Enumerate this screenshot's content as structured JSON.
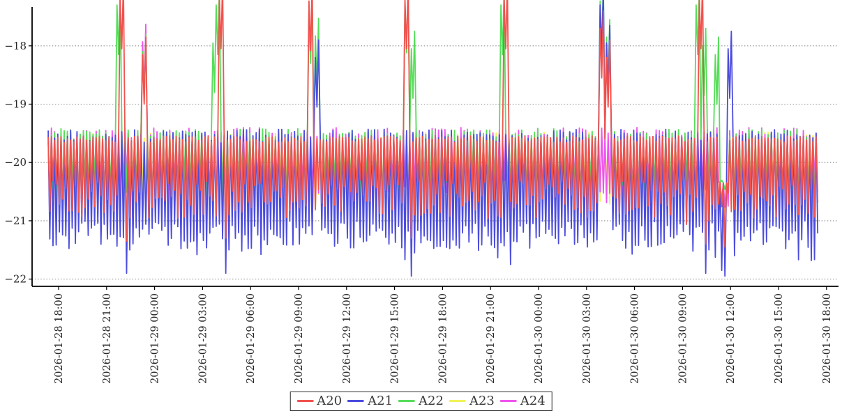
{
  "chart_data": {
    "type": "line",
    "title": "",
    "xlabel": "",
    "ylabel": "",
    "grid": "horizontal-dotted",
    "legend_position": "bottom-center",
    "y_axis": {
      "ticks": [
        -18,
        -19,
        -20,
        -21,
        -22
      ],
      "tick_labels": [
        "−18",
        "−19",
        "−20",
        "−21",
        "−22"
      ],
      "range": [
        -22.35,
        -17.33
      ]
    },
    "x_axis": {
      "tick_interval_hours": 3,
      "tick_labels": [
        "2026-01-28 18:00",
        "2026-01-28 21:00",
        "2026-01-29 00:00",
        "2026-01-29 03:00",
        "2026-01-29 06:00",
        "2026-01-29 09:00",
        "2026-01-29 12:00",
        "2026-01-29 15:00",
        "2026-01-29 18:00",
        "2026-01-29 21:00",
        "2026-01-30 00:00",
        "2026-01-30 03:00",
        "2026-01-30 06:00",
        "2026-01-30 09:00",
        "2026-01-30 12:00",
        "2026-01-30 15:00",
        "2026-01-30 18:00"
      ]
    },
    "sampling_hours": 0.1,
    "data_span_hours": [
      -0.65,
      47.5
    ],
    "series": [
      {
        "name": "A20",
        "color": "#f0534f",
        "top_mean": -19.6,
        "top_jit": 0.06,
        "bot_min": -20.3,
        "bot_max": -20.95,
        "deep_p": 0.06,
        "deep_extra": 0.18
      },
      {
        "name": "A21",
        "color": "#4c4cdd",
        "top_mean": -19.55,
        "top_jit": 0.12,
        "bot_min": -21.0,
        "bot_max": -21.48,
        "deep_p": 0.1,
        "deep_extra": 0.22
      },
      {
        "name": "A22",
        "color": "#57dd5a",
        "top_mean": -19.52,
        "top_jit": 0.1,
        "bot_min": -20.3,
        "bot_max": -20.85,
        "deep_p": 0.04,
        "deep_extra": 0.15
      },
      {
        "name": "A23",
        "color": "#f2f257",
        "top_mean": -19.58,
        "top_jit": 0.1,
        "bot_min": -20.3,
        "bot_max": -20.85,
        "deep_p": 0.03,
        "deep_extra": 0.1
      },
      {
        "name": "A24",
        "color": "#ee55ee",
        "top_mean": -19.53,
        "top_jit": 0.13,
        "bot_min": -20.3,
        "bot_max": -20.85,
        "deep_p": 0.03,
        "deep_extra": 0.1
      }
    ],
    "draw_order": [
      "A23",
      "A24",
      "A22",
      "A21",
      "A20"
    ],
    "events": [
      {
        "t": 3.77,
        "peaks": {
          "A22": -18.15
        }
      },
      {
        "t": 3.97,
        "peaks": {
          "A20": -18.05
        },
        "dips": {
          "A21": -21.9,
          "A20": -21.35
        }
      },
      {
        "t": 5.3,
        "peaks": {
          "A24": -18.78,
          "A22": -18.95,
          "A20": -19.0
        }
      },
      {
        "t": 9.75,
        "peaks": {
          "A22": -18.8
        }
      },
      {
        "t": 9.9,
        "peaks": {
          "A22": -18.15
        }
      },
      {
        "t": 10.1,
        "peaks": {
          "A20": -18.05
        },
        "dips": {
          "A21": -21.9,
          "A20": -21.3
        }
      },
      {
        "t": 15.62,
        "peaks": {
          "A22": -18.3
        }
      },
      {
        "t": 15.8,
        "peaks": {
          "A20": -18.08
        },
        "dips": {
          "A21": -21.55
        }
      },
      {
        "t": 16.1,
        "peaks": {
          "A22": -18.68,
          "A21": -19.05
        }
      },
      {
        "t": 21.62,
        "peaks": {
          "A22": -18.12
        }
      },
      {
        "t": 21.8,
        "peaks": {
          "A20": -18.05
        },
        "dips": {
          "A21": -21.95,
          "A20": -21.3
        }
      },
      {
        "t": 22.05,
        "peaks": {
          "A22": -18.9
        }
      },
      {
        "t": 27.62,
        "peaks": {
          "A22": -18.15
        }
      },
      {
        "t": 27.8,
        "peaks": {
          "A20": -18.05
        },
        "dips": {
          "A21": -21.75
        }
      },
      {
        "t": 33.9,
        "peaks": {
          "A21": -18.15,
          "A22": -18.08,
          "A20": -18.55
        },
        "dips": {
          "A21": -21.8
        }
      },
      {
        "t": 34.25,
        "peaks": {
          "A21": -18.8,
          "A22": -18.7,
          "A20": -19.05
        }
      },
      {
        "t": 39.88,
        "peaks": {
          "A22": -18.15
        }
      },
      {
        "t": 40.06,
        "peaks": {
          "A20": -18.05
        },
        "dips": {
          "A21": -21.9,
          "A20": -21.4
        }
      },
      {
        "t": 40.35,
        "peaks": {
          "A22": -18.85
        }
      },
      {
        "t": 41.15,
        "peaks": {
          "A22": -19.0
        },
        "dips": {
          "A21": -21.85
        }
      },
      {
        "t": 41.97,
        "peaks": {
          "A21": -18.9
        },
        "dips": {
          "A21": -21.6
        }
      }
    ],
    "window_event": {
      "t0": 41.35,
      "t1": 41.8,
      "cap": -20.35,
      "dips": {
        "A20": -21.45,
        "A21": -21.95
      }
    },
    "note": "Dense noisy 48h telemetry; series oscillate between top band (~-19.5) and bottom band (A20 ~-20.3..-21.0, A21 ~-21.0..-21.5) with ~6-hourly spikes to ~-18.05 listed in events."
  },
  "legend": {
    "entries": [
      "A20",
      "A21",
      "A22",
      "A23",
      "A24"
    ]
  },
  "colors": {
    "grid": "#8f8f8f",
    "spine": "#000000",
    "tick_text": "#262626"
  }
}
